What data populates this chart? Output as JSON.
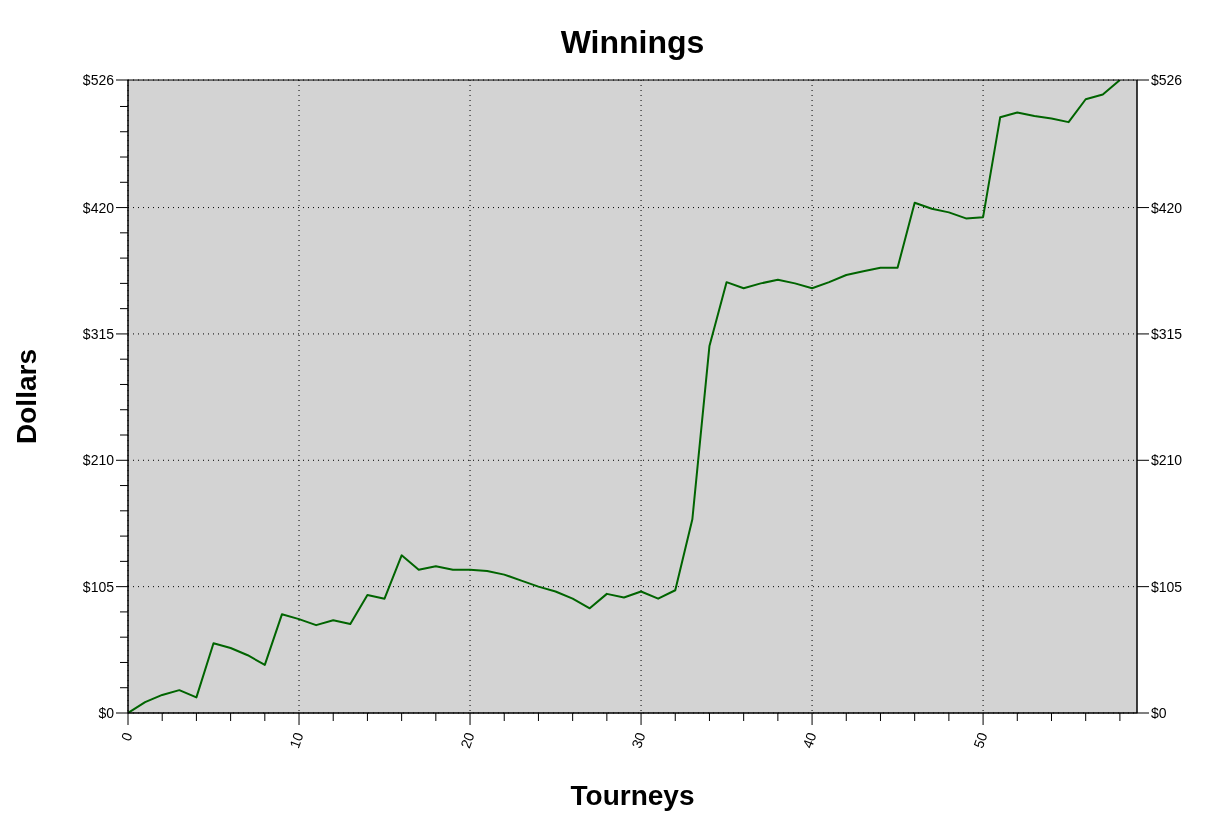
{
  "chart_data": {
    "type": "line",
    "title": "Winnings",
    "xlabel": "Tourneys",
    "ylabel": "Dollars",
    "x": [
      0,
      1,
      2,
      3,
      4,
      5,
      6,
      7,
      8,
      9,
      10,
      11,
      12,
      13,
      14,
      15,
      16,
      17,
      18,
      19,
      20,
      21,
      22,
      23,
      24,
      25,
      26,
      27,
      28,
      29,
      30,
      31,
      32,
      33,
      34,
      35,
      36,
      37,
      38,
      39,
      40,
      41,
      42,
      43,
      44,
      45,
      46,
      47,
      48,
      49,
      50,
      51,
      52,
      53,
      54,
      55,
      56,
      57,
      58
    ],
    "series": [
      {
        "color": "#006400",
        "values": [
          0,
          9,
          15,
          19,
          13,
          58,
          54,
          48,
          40,
          82,
          78,
          73,
          77,
          74,
          98,
          95,
          131,
          119,
          122,
          119,
          119,
          118,
          115,
          110,
          105,
          101,
          95,
          87,
          99,
          96,
          101,
          95,
          102,
          161,
          305,
          358,
          353,
          357,
          360,
          357,
          353,
          358,
          364,
          367,
          370,
          370,
          424,
          419,
          416,
          411,
          412,
          495,
          499,
          496,
          494,
          491,
          510,
          514,
          526
        ]
      }
    ],
    "xlim": [
      0,
      59
    ],
    "xticks": [
      0,
      {
        "value": 2,
        "label": null
      },
      {
        "value": 4,
        "label": null
      },
      {
        "value": 6,
        "label": null
      },
      {
        "value": 8,
        "label": null
      },
      10,
      {
        "value": 12,
        "label": null
      },
      {
        "value": 14,
        "label": null
      },
      {
        "value": 16,
        "label": null
      },
      {
        "value": 18,
        "label": null
      },
      20,
      {
        "value": 22,
        "label": null
      },
      {
        "value": 24,
        "label": null
      },
      {
        "value": 26,
        "label": null
      },
      {
        "value": 28,
        "label": null
      },
      30,
      {
        "value": 32,
        "label": null
      },
      {
        "value": 34,
        "label": null
      },
      {
        "value": 36,
        "label": null
      },
      {
        "value": 38,
        "label": null
      },
      40,
      {
        "value": 42,
        "label": null
      },
      {
        "value": 44,
        "label": null
      },
      {
        "value": 46,
        "label": null
      },
      {
        "value": 48,
        "label": null
      },
      50,
      {
        "value": 52,
        "label": null
      },
      {
        "value": 54,
        "label": null
      },
      {
        "value": 56,
        "label": null
      },
      {
        "value": 58,
        "label": null
      }
    ],
    "ylim": [
      0,
      526
    ],
    "yticks": [
      {
        "value": 0,
        "label": "$0"
      },
      {
        "value": 21,
        "label": null
      },
      {
        "value": 42,
        "label": null
      },
      {
        "value": 63,
        "label": null
      },
      {
        "value": 84,
        "label": null
      },
      {
        "value": 105,
        "label": "$105"
      },
      {
        "value": 126,
        "label": null
      },
      {
        "value": 147,
        "label": null
      },
      {
        "value": 168,
        "label": null
      },
      {
        "value": 189,
        "label": null
      },
      {
        "value": 210,
        "label": "$210"
      },
      {
        "value": 231,
        "label": null
      },
      {
        "value": 252,
        "label": null
      },
      {
        "value": 273,
        "label": null
      },
      {
        "value": 294,
        "label": null
      },
      {
        "value": 315,
        "label": "$315"
      },
      {
        "value": 336,
        "label": null
      },
      {
        "value": 357,
        "label": null
      },
      {
        "value": 378,
        "label": null
      },
      {
        "value": 399,
        "label": null
      },
      {
        "value": 420,
        "label": "$420"
      },
      {
        "value": 441,
        "label": null
      },
      {
        "value": 462,
        "label": null
      },
      {
        "value": 483,
        "label": null
      },
      {
        "value": 504,
        "label": null
      },
      {
        "value": 526,
        "label": "$526"
      }
    ],
    "y2lim": [
      0,
      526
    ],
    "y2ticks": [
      {
        "value": 0,
        "label": "$0"
      },
      {
        "value": 105,
        "label": "$105"
      },
      {
        "value": 210,
        "label": "$210"
      },
      {
        "value": 315,
        "label": "$315"
      },
      {
        "value": 420,
        "label": "$420"
      },
      {
        "value": 526,
        "label": "$526"
      }
    ],
    "grid": true,
    "marker": "none",
    "line_style": "solid",
    "legend": false
  }
}
